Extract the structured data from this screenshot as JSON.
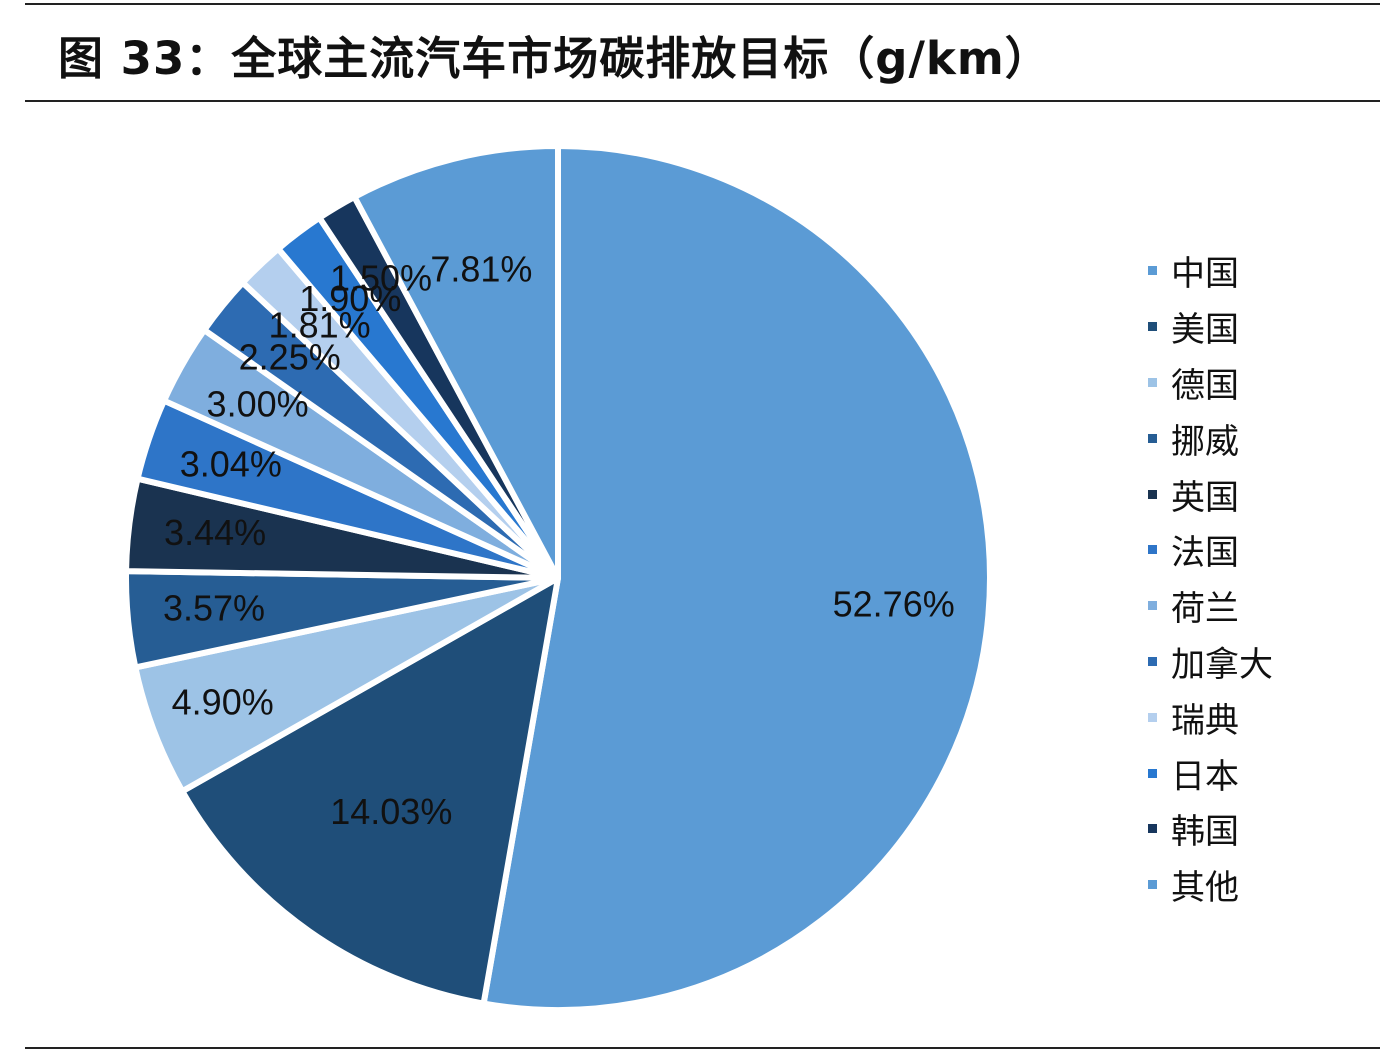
{
  "title": "图 33：全球主流汽车市场碳排放目标（g/km）",
  "chart_data": {
    "type": "pie",
    "title": "图 33：全球主流汽车市场碳排放目标（g/km）",
    "legend_position": "right",
    "start_angle_deg": 0,
    "direction": "clockwise",
    "slices": [
      {
        "name": "中国",
        "value": 52.76,
        "label": "52.76%",
        "color": "#5B9BD5"
      },
      {
        "name": "美国",
        "value": 14.03,
        "label": "14.03%",
        "color": "#1F4E79"
      },
      {
        "name": "德国",
        "value": 4.9,
        "label": "4.90%",
        "color": "#9DC3E6"
      },
      {
        "name": "挪威",
        "value": 3.57,
        "label": "3.57%",
        "color": "#265D94"
      },
      {
        "name": "英国",
        "value": 3.44,
        "label": "3.44%",
        "color": "#1A3350"
      },
      {
        "name": "法国",
        "value": 3.04,
        "label": "3.04%",
        "color": "#2E75C8"
      },
      {
        "name": "荷兰",
        "value": 3.0,
        "label": "3.00%",
        "color": "#7FAEDE"
      },
      {
        "name": "加拿大",
        "value": 2.25,
        "label": "2.25%",
        "color": "#2D6BB2"
      },
      {
        "name": "瑞典",
        "value": 1.81,
        "label": "1.81%",
        "color": "#B4CFEE"
      },
      {
        "name": "日本",
        "value": 1.9,
        "label": "1.90%",
        "color": "#2878D0"
      },
      {
        "name": "韩国",
        "value": 1.5,
        "label": "1.50%",
        "color": "#17365D"
      },
      {
        "name": "其他",
        "value": 7.81,
        "label": "7.81%",
        "color": "#5B9BD5"
      }
    ]
  }
}
